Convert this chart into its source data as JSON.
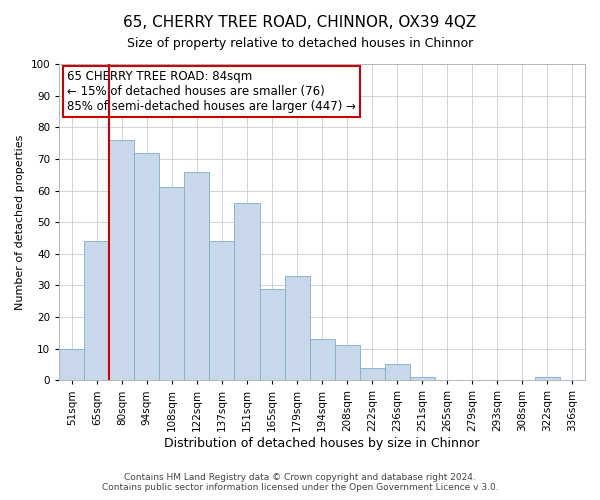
{
  "title": "65, CHERRY TREE ROAD, CHINNOR, OX39 4QZ",
  "subtitle": "Size of property relative to detached houses in Chinnor",
  "xlabel": "Distribution of detached houses by size in Chinnor",
  "ylabel": "Number of detached properties",
  "footer_line1": "Contains HM Land Registry data © Crown copyright and database right 2024.",
  "footer_line2": "Contains public sector information licensed under the Open Government Licence v 3.0.",
  "bin_labels": [
    "51sqm",
    "65sqm",
    "80sqm",
    "94sqm",
    "108sqm",
    "122sqm",
    "137sqm",
    "151sqm",
    "165sqm",
    "179sqm",
    "194sqm",
    "208sqm",
    "222sqm",
    "236sqm",
    "251sqm",
    "265sqm",
    "279sqm",
    "293sqm",
    "308sqm",
    "322sqm",
    "336sqm"
  ],
  "bar_heights": [
    10,
    44,
    76,
    72,
    61,
    66,
    44,
    56,
    29,
    33,
    13,
    11,
    4,
    5,
    1,
    0,
    0,
    0,
    0,
    1,
    0
  ],
  "bar_color": "#c8d8ea",
  "bar_edgecolor": "#7ab0cc",
  "vline_color": "#cc0000",
  "annotation_title": "65 CHERRY TREE ROAD: 84sqm",
  "annotation_line1": "← 15% of detached houses are smaller (76)",
  "annotation_line2": "85% of semi-detached houses are larger (447) →",
  "annotation_box_edgecolor": "#cc0000",
  "ylim": [
    0,
    100
  ],
  "background_color": "#ffffff",
  "grid_color": "#c5cdd5",
  "title_fontsize": 11,
  "subtitle_fontsize": 9,
  "xlabel_fontsize": 9,
  "ylabel_fontsize": 8,
  "tick_fontsize": 7.5,
  "annotation_fontsize": 8.5,
  "footer_fontsize": 6.5
}
